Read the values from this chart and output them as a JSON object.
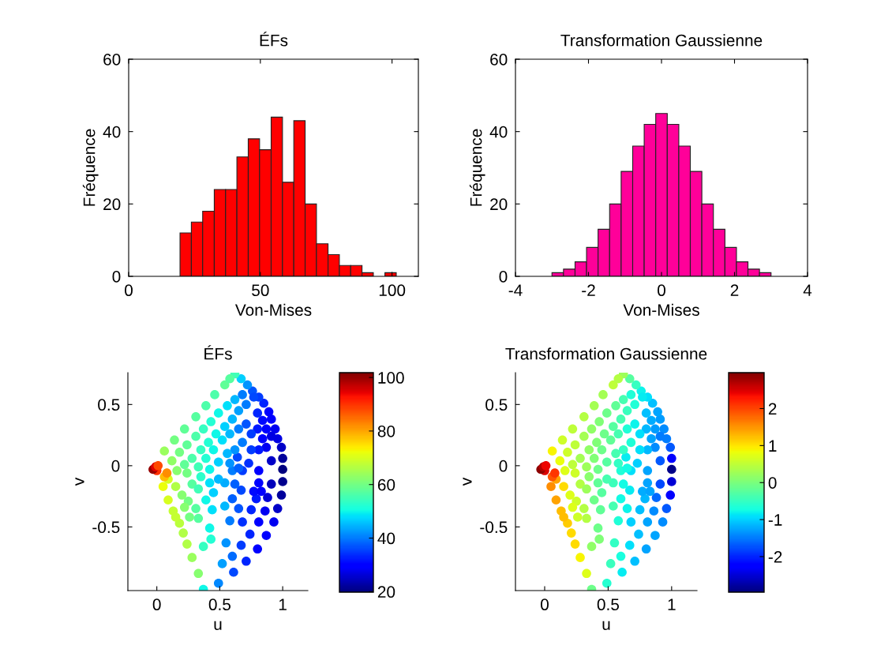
{
  "chart_data": [
    {
      "type": "histogram",
      "title": "ÉFs",
      "xlabel": "Von-Mises",
      "ylabel": "Fréquence",
      "color": "#ff0000",
      "bins": [
        19.5,
        23.8,
        28.1,
        32.5,
        36.8,
        41.1,
        45.4,
        49.7,
        54.1,
        58.4,
        62.7,
        67.0,
        71.3,
        75.7,
        80.0,
        84.3,
        88.6,
        92.9,
        97.3,
        101.6
      ],
      "values": [
        12,
        15,
        18,
        24,
        24,
        33,
        38,
        35,
        44,
        26,
        43,
        20,
        9,
        6,
        3,
        3,
        1,
        0,
        1
      ],
      "xlim": [
        0,
        110
      ],
      "xticks": [
        0,
        50,
        100
      ],
      "ylim": [
        0,
        60
      ],
      "yticks": [
        0,
        20,
        40,
        60
      ]
    },
    {
      "type": "histogram",
      "title": "Transformation Gaussienne",
      "xlabel": "Von-Mises",
      "ylabel": "Fréquence",
      "color": "#ff0099",
      "bins": [
        -3.0,
        -2.684,
        -2.368,
        -2.053,
        -1.737,
        -1.421,
        -1.105,
        -0.789,
        -0.474,
        -0.158,
        0.158,
        0.474,
        0.789,
        1.105,
        1.421,
        1.737,
        2.053,
        2.368,
        2.684,
        3.0
      ],
      "values": [
        1,
        2,
        4,
        8,
        13,
        20,
        29,
        36,
        42,
        45,
        42,
        36,
        29,
        20,
        13,
        8,
        4,
        2,
        1
      ],
      "xlim": [
        -4,
        4
      ],
      "xticks": [
        -4,
        -2,
        0,
        2,
        4
      ],
      "ylim": [
        0,
        60
      ],
      "yticks": [
        0,
        20,
        40,
        60
      ]
    },
    {
      "type": "scatter",
      "title": "ÉFs",
      "xlabel": "u",
      "ylabel": "v",
      "marker": "circle",
      "clim": [
        19.8,
        101.8
      ],
      "cticks": [
        20,
        40,
        60,
        80,
        100
      ],
      "xlim": [
        -0.23,
        1.2
      ],
      "xticks": [
        0,
        0.5,
        1
      ],
      "ylim": [
        -1.02,
        0.76
      ],
      "yticks": [
        -0.5,
        0,
        0.5
      ],
      "x": [
        1.0,
        1.0,
        1.0,
        0.99,
        0.99,
        0.96,
        0.94,
        0.91,
        0.89,
        0.85,
        0.81,
        0.76,
        0.72,
        0.67,
        0.62,
        0.96,
        0.93,
        0.87,
        0.8,
        0.71,
        0.61,
        0.49,
        0.37,
        0.33,
        0.28,
        0.24,
        0.21,
        0.18,
        0.15,
        0.13,
        0.09,
        0.05,
        0.0,
        -0.03,
        -0.01,
        0.01,
        0.06,
        0.14,
        0.22,
        0.31,
        0.39,
        0.46,
        0.54,
        0.58,
        0.91,
        0.88,
        0.86,
        0.81,
        0.91,
        0.91,
        0.87,
        0.84,
        0.8,
        0.81,
        0.81,
        0.79,
        0.75,
        0.74,
        0.67,
        0.68,
        0.77,
        0.83,
        0.73,
        0.68,
        0.67,
        0.6,
        0.65,
        0.58,
        0.55,
        0.52,
        0.6,
        0.64,
        0.6,
        0.62,
        0.54,
        0.54,
        0.44,
        0.42,
        0.37,
        0.43,
        0.45,
        0.39,
        0.33,
        0.31,
        0.25,
        0.22,
        0.26,
        0.2,
        0.15,
        0.09,
        0.06,
        0.08,
        0.77,
        0.71,
        0.65,
        0.6,
        0.54,
        0.47,
        0.41,
        0.35,
        0.28,
        0.22,
        0.16,
        0.8,
        0.75,
        0.68,
        0.62,
        0.56,
        0.49,
        0.42,
        0.35,
        0.28,
        0.84,
        0.87,
        0.81,
        0.75,
        0.71,
        0.65,
        0.58,
        0.52,
        0.45,
        0.39,
        0.33,
        0.24,
        0.68,
        0.62,
        0.56,
        0.49,
        0.43,
        0.37,
        0.31,
        0.24,
        0.18,
        0.12,
        0.33,
        0.42,
        0.49,
        0.58,
        0.65
      ],
      "values": [
        0.06,
        -0.03,
        -0.13,
        -0.24,
        0.15,
        0.22,
        0.3,
        0.38,
        0.44,
        0.51,
        0.56,
        0.61,
        0.66,
        0.71,
        0.75,
        -0.35,
        -0.46,
        -0.57,
        -0.68,
        -0.78,
        -0.87,
        -0.96,
        -1.01,
        -0.88,
        -0.75,
        -0.64,
        -0.55,
        -0.47,
        -0.42,
        -0.37,
        -0.28,
        -0.17,
        -0.04,
        -0.03,
        -0.01,
        0.0,
        0.12,
        0.21,
        0.3,
        0.4,
        0.49,
        0.58,
        0.66,
        0.71,
        -0.15,
        -0.26,
        -0.37,
        -0.46,
        0.04,
        0.24,
        0.3,
        0.37,
        0.43,
        -0.04,
        -0.14,
        -0.27,
        -0.36,
        -0.56,
        -0.65,
        -0.46,
        -0.21,
        -0.21,
        0.02,
        -0.04,
        -0.2,
        -0.27,
        -0.35,
        -0.45,
        -0.63,
        -0.8,
        -0.74,
        0.07,
        -0.04,
        -0.15,
        -0.14,
        -0.33,
        -0.36,
        -0.51,
        -0.66,
        -0.6,
        -0.22,
        -0.28,
        -0.43,
        -0.35,
        -0.29,
        -0.34,
        -0.42,
        -0.24,
        -0.17,
        -0.11,
        -0.09,
        -0.06,
        0.56,
        0.5,
        0.45,
        0.38,
        0.32,
        0.26,
        0.19,
        0.13,
        0.06,
        0.01,
        -0.04,
        0.3,
        0.26,
        0.19,
        0.13,
        0.1,
        0.03,
        -0.03,
        -0.09,
        -0.15,
        0.22,
        0.15,
        0.13,
        0.13,
        0.34,
        0.3,
        0.26,
        0.21,
        0.13,
        0.06,
        -0.01,
        -0.06,
        0.58,
        0.54,
        0.49,
        0.43,
        0.36,
        0.3,
        0.24,
        0.17,
        0.11,
        0.04,
        -0.19,
        -0.14,
        -0.11,
        0.02,
        -0.02
      ],
      "cvalues": [
        22,
        20,
        21,
        22,
        25,
        27,
        28,
        29,
        30,
        33,
        35,
        37,
        42,
        47,
        55,
        25,
        28,
        30,
        30,
        33,
        36,
        41,
        50,
        62,
        64,
        66,
        66,
        67,
        68,
        68,
        70,
        72,
        90,
        100,
        95,
        88,
        64,
        60,
        58,
        57,
        56,
        56,
        58,
        57,
        24,
        26,
        28,
        30,
        25,
        27,
        29,
        31,
        33,
        30,
        30,
        32,
        33,
        33,
        35,
        34,
        31,
        30,
        34,
        35,
        36,
        38,
        37,
        40,
        42,
        43,
        39,
        36,
        40,
        38,
        44,
        45,
        48,
        50,
        54,
        52,
        47,
        50,
        57,
        57,
        60,
        62,
        60,
        62,
        66,
        70,
        78,
        82,
        36,
        40,
        43,
        45,
        47,
        50,
        52,
        54,
        56,
        58,
        62,
        32,
        35,
        40,
        42,
        45,
        47,
        50,
        53,
        57,
        30,
        28,
        32,
        35,
        37,
        40,
        45,
        48,
        50,
        52,
        55,
        60,
        40,
        45,
        48,
        50,
        52,
        54,
        56,
        58,
        60,
        63,
        55,
        48,
        45,
        42,
        38
      ]
    },
    {
      "type": "scatter",
      "title": "Transformation Gaussienne",
      "xlabel": "u",
      "ylabel": "v",
      "marker": "circle",
      "clim": [
        -2.96,
        2.97
      ],
      "cticks": [
        -2,
        -1,
        0,
        1,
        2
      ],
      "xlim": [
        -0.23,
        1.2
      ],
      "xticks": [
        0,
        0.5,
        1
      ],
      "ylim": [
        -1.02,
        0.76
      ],
      "yticks": [
        -0.5,
        0,
        0.5
      ],
      "x": [
        1.0,
        1.0,
        1.0,
        0.99,
        0.99,
        0.96,
        0.94,
        0.91,
        0.89,
        0.85,
        0.81,
        0.76,
        0.72,
        0.67,
        0.62,
        0.96,
        0.93,
        0.87,
        0.8,
        0.71,
        0.61,
        0.49,
        0.37,
        0.33,
        0.28,
        0.24,
        0.21,
        0.18,
        0.15,
        0.13,
        0.09,
        0.05,
        0.0,
        -0.03,
        -0.01,
        0.01,
        0.06,
        0.14,
        0.22,
        0.31,
        0.39,
        0.46,
        0.54,
        0.58,
        0.91,
        0.88,
        0.86,
        0.81,
        0.91,
        0.91,
        0.87,
        0.84,
        0.8,
        0.81,
        0.81,
        0.79,
        0.75,
        0.74,
        0.67,
        0.68,
        0.77,
        0.83,
        0.73,
        0.68,
        0.67,
        0.6,
        0.65,
        0.58,
        0.55,
        0.52,
        0.6,
        0.64,
        0.6,
        0.62,
        0.54,
        0.54,
        0.44,
        0.42,
        0.37,
        0.43,
        0.45,
        0.39,
        0.33,
        0.31,
        0.25,
        0.22,
        0.26,
        0.2,
        0.15,
        0.09,
        0.06,
        0.08,
        0.77,
        0.71,
        0.65,
        0.6,
        0.54,
        0.47,
        0.41,
        0.35,
        0.28,
        0.22,
        0.16,
        0.8,
        0.75,
        0.68,
        0.62,
        0.56,
        0.49,
        0.42,
        0.35,
        0.28,
        0.84,
        0.87,
        0.81,
        0.75,
        0.71,
        0.65,
        0.58,
        0.52,
        0.45,
        0.39,
        0.33,
        0.24,
        0.68,
        0.62,
        0.56,
        0.49,
        0.43,
        0.37,
        0.31,
        0.24,
        0.18,
        0.12,
        0.33,
        0.42,
        0.49,
        0.58,
        0.65
      ],
      "values": [
        0.06,
        -0.03,
        -0.13,
        -0.24,
        0.15,
        0.22,
        0.3,
        0.38,
        0.44,
        0.51,
        0.56,
        0.61,
        0.66,
        0.71,
        0.75,
        -0.35,
        -0.46,
        -0.57,
        -0.68,
        -0.78,
        -0.87,
        -0.96,
        -1.01,
        -0.88,
        -0.75,
        -0.64,
        -0.55,
        -0.47,
        -0.42,
        -0.37,
        -0.28,
        -0.17,
        -0.04,
        -0.03,
        -0.01,
        0.0,
        0.12,
        0.21,
        0.3,
        0.4,
        0.49,
        0.58,
        0.66,
        0.71,
        -0.15,
        -0.26,
        -0.37,
        -0.46,
        0.04,
        0.24,
        0.3,
        0.37,
        0.43,
        -0.04,
        -0.14,
        -0.27,
        -0.36,
        -0.56,
        -0.65,
        -0.46,
        -0.21,
        -0.21,
        0.02,
        -0.04,
        -0.2,
        -0.27,
        -0.35,
        -0.45,
        -0.63,
        -0.8,
        -0.74,
        0.07,
        -0.04,
        -0.15,
        -0.14,
        -0.33,
        -0.36,
        -0.51,
        -0.66,
        -0.6,
        -0.22,
        -0.28,
        -0.43,
        -0.35,
        -0.29,
        -0.34,
        -0.42,
        -0.24,
        -0.17,
        -0.11,
        -0.09,
        -0.06,
        0.56,
        0.5,
        0.45,
        0.38,
        0.32,
        0.26,
        0.19,
        0.13,
        0.06,
        0.01,
        -0.04,
        0.3,
        0.26,
        0.19,
        0.13,
        0.1,
        0.03,
        -0.03,
        -0.09,
        -0.15,
        0.22,
        0.15,
        0.13,
        0.13,
        0.34,
        0.3,
        0.26,
        0.21,
        0.13,
        0.06,
        -0.01,
        -0.06,
        0.58,
        0.54,
        0.49,
        0.43,
        0.36,
        0.3,
        0.24,
        0.17,
        0.11,
        0.04,
        -0.19,
        -0.14,
        -0.11,
        0.02,
        -0.02
      ],
      "cvalues": [
        -2.2,
        -2.9,
        -2.5,
        -2.2,
        -1.7,
        -1.5,
        -1.4,
        -1.3,
        -1.25,
        -1.1,
        -0.9,
        -0.8,
        -0.5,
        -0.25,
        0.25,
        -1.7,
        -1.4,
        -1.25,
        -1.25,
        -1.1,
        -0.85,
        -0.6,
        -0.1,
        0.7,
        0.9,
        1.05,
        1.05,
        1.15,
        1.25,
        1.25,
        1.4,
        1.55,
        2.5,
        2.9,
        2.7,
        2.4,
        0.9,
        0.6,
        0.48,
        0.4,
        0.3,
        0.3,
        0.48,
        0.4,
        -1.8,
        -1.6,
        -1.4,
        -1.25,
        -1.7,
        -1.5,
        -1.3,
        -1.2,
        -1.1,
        -1.25,
        -1.25,
        -1.15,
        -1.1,
        -1.1,
        -0.9,
        -1.0,
        -1.2,
        -1.25,
        -1.0,
        -0.9,
        -0.85,
        -0.75,
        -0.8,
        -0.65,
        -0.52,
        -0.48,
        -0.7,
        -0.85,
        -0.65,
        -0.75,
        -0.45,
        -0.38,
        -0.2,
        -0.1,
        0.15,
        0.05,
        -0.25,
        -0.1,
        0.4,
        0.4,
        0.6,
        0.7,
        0.6,
        0.7,
        1.05,
        1.4,
        1.9,
        2.1,
        -0.85,
        -0.65,
        -0.48,
        -0.38,
        -0.25,
        -0.1,
        0.05,
        0.15,
        0.3,
        0.48,
        0.7,
        -1.15,
        -0.9,
        -0.65,
        -0.52,
        -0.38,
        -0.25,
        -0.1,
        0.1,
        0.4,
        -1.25,
        -1.4,
        -1.15,
        -0.9,
        -0.8,
        -0.65,
        -0.38,
        -0.2,
        -0.1,
        0.05,
        0.25,
        0.6,
        -0.65,
        -0.38,
        -0.2,
        -0.1,
        0.05,
        0.15,
        0.3,
        0.48,
        0.6,
        0.8,
        0.25,
        -0.2,
        -0.38,
        -0.52,
        -0.75
      ]
    }
  ]
}
